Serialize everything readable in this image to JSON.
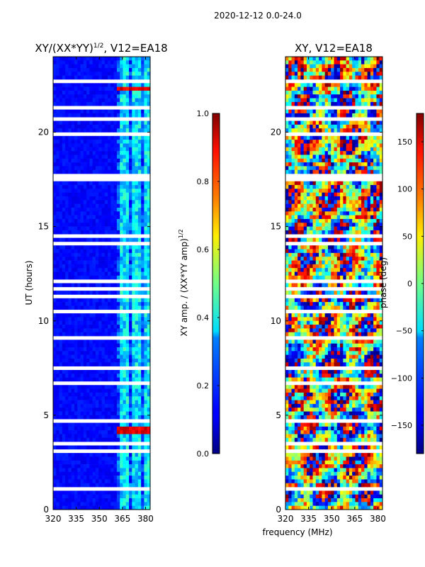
{
  "chart_data": {
    "suptitle": "2020-12-12 0.0-24.0",
    "shared_xlabel": "frequency (MHz)",
    "panels": [
      {
        "type": "heatmap",
        "title_main": "XY/(XX*YY)",
        "title_sup": "1/2",
        "title_tail": ", V12=EA18",
        "ylabel": "UT (hours)",
        "xlim": [
          320,
          383
        ],
        "ylim": [
          0,
          24
        ],
        "x_ticks": [
          "320",
          "335",
          "350",
          "365",
          "380"
        ],
        "x_tick_values": [
          320,
          335,
          350,
          365,
          380
        ],
        "y_ticks": [
          "0",
          "5",
          "10",
          "15",
          "20"
        ],
        "y_tick_values": [
          0,
          5,
          10,
          15,
          20
        ],
        "colorbar": {
          "label_main": "XY amp. / (XX*YY amp)",
          "label_sup": "1/2",
          "range": [
            0.0,
            1.0
          ],
          "ticks": [
            "0.0",
            "0.2",
            "0.4",
            "0.6",
            "0.8",
            "1.0"
          ],
          "tick_values": [
            0.0,
            0.2,
            0.4,
            0.6,
            0.8,
            1.0
          ]
        },
        "description_values": {
          "background_level": 0.1,
          "channel_band_MHz": [
            361,
            383
          ],
          "channel_band_level": 0.35,
          "hot_spots_UT": [
            4.2,
            22.3
          ],
          "hot_spot_level": 0.85
        }
      },
      {
        "type": "heatmap",
        "title_main": "XY, V12=EA18",
        "ylabel": "",
        "xlim": [
          320,
          383
        ],
        "ylim": [
          0,
          24
        ],
        "x_ticks": [
          "320",
          "335",
          "350",
          "365",
          "380"
        ],
        "x_tick_values": [
          320,
          335,
          350,
          365,
          380
        ],
        "y_ticks": [
          "0",
          "5",
          "10",
          "15",
          "20"
        ],
        "y_tick_values": [
          0,
          5,
          10,
          15,
          20
        ],
        "colorbar": {
          "label_main": "phase (deg)",
          "range": [
            -180,
            180
          ],
          "ticks": [
            "−150",
            "−100",
            "−50",
            "0",
            "50",
            "100",
            "150"
          ],
          "tick_values": [
            -150,
            -100,
            -50,
            0,
            50,
            100,
            150
          ]
        }
      }
    ]
  }
}
